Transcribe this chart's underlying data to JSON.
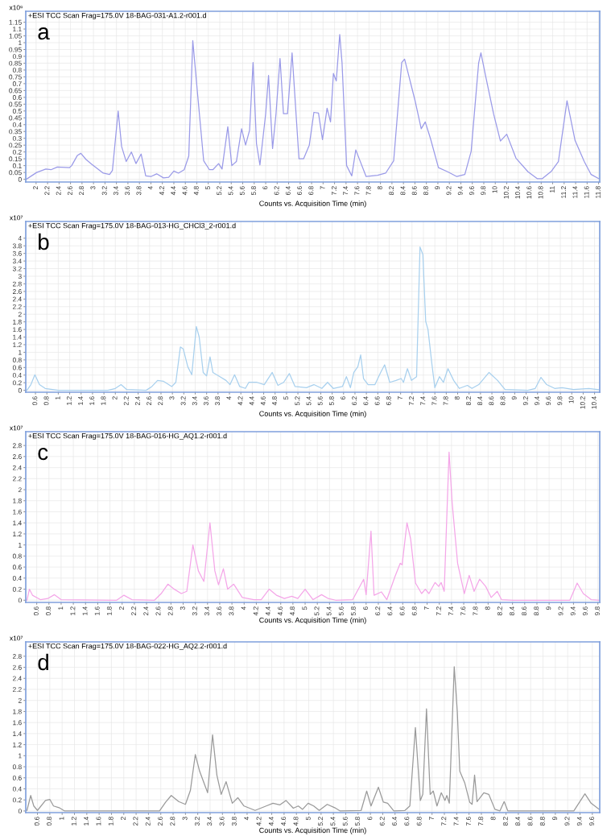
{
  "chart_data": [
    {
      "type": "line",
      "title": "a",
      "subtitle": "+ESI TCC Scan Frag=175.0V 18-BAG-031-A1.2-r001.d",
      "xlabel": "Counts vs. Acquisition Time (min)",
      "ylabel": "x10⁶",
      "grid": true,
      "xlim": [
        1.82,
        11.82
      ],
      "ylim": [
        -0.02,
        1.23
      ],
      "xticks": [
        2,
        2.2,
        2.4,
        2.6,
        2.8,
        3,
        3.2,
        3.4,
        3.6,
        3.8,
        4,
        4.2,
        4.4,
        4.6,
        4.8,
        5,
        5.2,
        5.4,
        5.6,
        5.8,
        6,
        6.2,
        6.4,
        6.6,
        6.8,
        7,
        7.2,
        7.4,
        7.6,
        7.8,
        8,
        8.2,
        8.4,
        8.6,
        8.8,
        9,
        9.2,
        9.4,
        9.6,
        9.8,
        10,
        10.2,
        10.4,
        10.6,
        10.8,
        11,
        11.2,
        11.4,
        11.6,
        11.8
      ],
      "yticks": [
        0,
        0.05,
        0.1,
        0.15,
        0.2,
        0.25,
        0.3,
        0.35,
        0.4,
        0.45,
        0.5,
        0.55,
        0.6,
        0.65,
        0.7,
        0.75,
        0.8,
        0.85,
        0.9,
        0.95,
        1,
        1.05,
        1.1,
        1.15
      ],
      "series": [
        {
          "color": "#9a9ae8",
          "x": [
            1.83,
            2.01,
            2.17,
            2.26,
            2.37,
            2.58,
            2.62,
            2.72,
            2.78,
            2.87,
            2.97,
            3.17,
            3.28,
            3.33,
            3.43,
            3.49,
            3.57,
            3.66,
            3.74,
            3.83,
            3.91,
            4.0,
            4.1,
            4.22,
            4.31,
            4.4,
            4.48,
            4.58,
            4.66,
            4.73,
            4.81,
            4.92,
            5.02,
            5.08,
            5.18,
            5.24,
            5.34,
            5.41,
            5.49,
            5.58,
            5.65,
            5.72,
            5.78,
            5.84,
            5.9,
            6.0,
            6.05,
            6.12,
            6.18,
            6.25,
            6.31,
            6.38,
            6.46,
            6.58,
            6.66,
            6.76,
            6.84,
            6.92,
            6.99,
            7.07,
            7.13,
            7.18,
            7.23,
            7.29,
            7.33,
            7.41,
            7.5,
            7.57,
            7.75,
            7.95,
            8.09,
            8.23,
            8.37,
            8.42,
            8.6,
            8.71,
            8.78,
            8.87,
            9.01,
            9.17,
            9.33,
            9.47,
            9.58,
            9.71,
            9.75,
            9.84,
            9.97,
            10.09,
            10.2,
            10.36,
            10.57,
            10.73,
            10.82,
            10.98,
            11.1,
            11.25,
            11.39,
            11.55,
            11.67,
            11.8
          ],
          "values": [
            0.0,
            0.05,
            0.075,
            0.07,
            0.09,
            0.085,
            0.1,
            0.175,
            0.19,
            0.145,
            0.11,
            0.045,
            0.035,
            0.065,
            0.5,
            0.24,
            0.13,
            0.2,
            0.115,
            0.185,
            0.025,
            0.02,
            0.04,
            0.01,
            0.015,
            0.06,
            0.045,
            0.07,
            0.17,
            1.015,
            0.64,
            0.135,
            0.07,
            0.07,
            0.115,
            0.075,
            0.385,
            0.1,
            0.13,
            0.37,
            0.25,
            0.36,
            0.855,
            0.26,
            0.105,
            0.48,
            0.76,
            0.225,
            0.48,
            0.885,
            0.48,
            0.48,
            0.925,
            0.15,
            0.15,
            0.25,
            0.49,
            0.485,
            0.29,
            0.52,
            0.42,
            0.775,
            0.72,
            1.06,
            0.855,
            0.1,
            0.025,
            0.215,
            0.02,
            0.03,
            0.045,
            0.135,
            0.855,
            0.88,
            0.58,
            0.37,
            0.42,
            0.3,
            0.085,
            0.055,
            0.02,
            0.035,
            0.205,
            0.85,
            0.925,
            0.74,
            0.48,
            0.28,
            0.33,
            0.155,
            0.055,
            0.005,
            0.005,
            0.06,
            0.13,
            0.575,
            0.285,
            0.13,
            0.035,
            0.005
          ]
        }
      ]
    },
    {
      "type": "line",
      "title": "b",
      "subtitle": "+ESI TCC Scan Frag=175.0V 18-BAG-013-HG_CHCl3_2-r001.d",
      "xlabel": "Counts vs. Acquisition Time (min)",
      "ylabel": "x10⁷",
      "grid": true,
      "xlim": [
        0.43,
        10.49
      ],
      "ylim": [
        -0.05,
        4.44
      ],
      "xticks": [
        0.6,
        0.8,
        1,
        1.2,
        1.4,
        1.6,
        1.8,
        2,
        2.2,
        2.4,
        2.6,
        2.8,
        3,
        3.2,
        3.4,
        3.6,
        3.8,
        4,
        4.2,
        4.4,
        4.6,
        4.8,
        5,
        5.2,
        5.4,
        5.6,
        5.8,
        6,
        6.2,
        6.4,
        6.6,
        6.8,
        7,
        7.2,
        7.4,
        7.6,
        7.8,
        8,
        8.2,
        8.4,
        8.6,
        8.8,
        9,
        9.2,
        9.4,
        9.6,
        9.8,
        10,
        10.2,
        10.4
      ],
      "yticks": [
        0,
        0.2,
        0.4,
        0.6,
        0.8,
        1,
        1.2,
        1.4,
        1.6,
        1.8,
        2,
        2.2,
        2.4,
        2.6,
        2.8,
        3,
        3.2,
        3.4,
        3.6,
        3.8,
        4
      ],
      "series": [
        {
          "color": "#a8d0ee",
          "x": [
            0.45,
            0.52,
            0.59,
            0.67,
            0.77,
            1.0,
            1.87,
            2.0,
            2.1,
            2.2,
            2.54,
            2.64,
            2.74,
            2.84,
            2.99,
            3.06,
            3.14,
            3.19,
            3.27,
            3.34,
            3.42,
            3.47,
            3.54,
            3.6,
            3.66,
            3.71,
            3.81,
            3.94,
            4.01,
            4.09,
            4.18,
            4.28,
            4.34,
            4.48,
            4.61,
            4.75,
            4.85,
            4.95,
            5.05,
            5.15,
            5.35,
            5.48,
            5.62,
            5.72,
            5.82,
            5.98,
            6.05,
            6.12,
            6.18,
            6.25,
            6.3,
            6.35,
            6.43,
            6.55,
            6.65,
            6.72,
            6.81,
            6.92,
            7.01,
            7.05,
            7.12,
            7.19,
            7.28,
            7.34,
            7.39,
            7.44,
            7.48,
            7.55,
            7.6,
            7.68,
            7.75,
            7.83,
            7.93,
            8.03,
            8.17,
            8.25,
            8.37,
            8.55,
            8.7,
            8.83,
            9.23,
            9.36,
            9.46,
            9.56,
            9.7,
            9.83,
            10.03,
            10.3,
            10.47
          ],
          "values": [
            0,
            0.15,
            0.41,
            0.15,
            0.05,
            0,
            0,
            0.05,
            0.15,
            0.02,
            0,
            0.1,
            0.26,
            0.24,
            0.1,
            0.21,
            1.14,
            1.09,
            0.62,
            0.41,
            1.68,
            1.4,
            0.47,
            0.38,
            0.88,
            0.47,
            0.38,
            0.26,
            0.15,
            0.41,
            0.1,
            0.05,
            0.21,
            0.21,
            0.15,
            0.47,
            0.13,
            0.21,
            0.44,
            0.1,
            0.07,
            0.15,
            0.05,
            0.21,
            0.05,
            0.1,
            0.36,
            0.07,
            0.47,
            0.62,
            0.93,
            0.31,
            0.15,
            0.15,
            0.47,
            0.67,
            0.21,
            0.26,
            0.31,
            0.21,
            0.57,
            0.26,
            0.36,
            3.77,
            3.57,
            1.81,
            1.6,
            0.67,
            0.07,
            0.36,
            0.21,
            0.57,
            0.26,
            0.05,
            0.13,
            0.05,
            0.15,
            0.47,
            0.26,
            0.02,
            0,
            0.05,
            0.34,
            0.15,
            0.05,
            0.07,
            0.02,
            0.05,
            0.02
          ]
        }
      ]
    },
    {
      "type": "line",
      "title": "c",
      "subtitle": "+ESI TCC Scan Frag=175.0V 18-BAG-016-HG_AQ1.2-r001.d",
      "xlabel": "Counts vs. Acquisition Time (min)",
      "ylabel": "x10⁷",
      "grid": true,
      "xlim": [
        0.42,
        9.83
      ],
      "ylim": [
        -0.04,
        3.05
      ],
      "xticks": [
        0.6,
        0.8,
        1,
        1.2,
        1.4,
        1.6,
        1.8,
        2,
        2.2,
        2.4,
        2.6,
        2.8,
        3,
        3.2,
        3.4,
        3.6,
        3.8,
        4,
        4.2,
        4.4,
        4.6,
        4.8,
        5,
        5.2,
        5.4,
        5.6,
        5.8,
        6,
        6.2,
        6.4,
        6.6,
        6.8,
        7,
        7.2,
        7.4,
        7.6,
        7.8,
        8,
        8.2,
        8.4,
        8.6,
        8.8,
        9,
        9.2,
        9.4,
        9.6,
        9.8
      ],
      "yticks": [
        0,
        0.2,
        0.4,
        0.6,
        0.8,
        1,
        1.2,
        1.4,
        1.6,
        1.8,
        2,
        2.2,
        2.4,
        2.6,
        2.8
      ],
      "series": [
        {
          "color": "#f4a6e8",
          "x": [
            0.44,
            0.48,
            0.53,
            0.66,
            0.78,
            0.89,
            1.0,
            1.91,
            2.03,
            2.16,
            2.53,
            2.64,
            2.75,
            2.84,
            2.97,
            3.06,
            3.16,
            3.25,
            3.34,
            3.44,
            3.52,
            3.58,
            3.66,
            3.73,
            3.83,
            3.97,
            4.16,
            4.28,
            4.41,
            4.53,
            4.66,
            4.78,
            4.88,
            5.0,
            5.13,
            5.27,
            5.38,
            5.5,
            5.78,
            5.96,
            6.0,
            6.08,
            6.13,
            6.25,
            6.34,
            6.47,
            6.56,
            6.59,
            6.67,
            6.73,
            6.81,
            6.91,
            6.97,
            7.03,
            7.13,
            7.19,
            7.23,
            7.28,
            7.36,
            7.41,
            7.5,
            7.61,
            7.69,
            7.77,
            7.86,
            7.96,
            8.05,
            8.15,
            8.22,
            8.41,
            9.34,
            9.46,
            9.56,
            9.69,
            9.82
          ],
          "values": [
            0,
            0.2,
            0.09,
            0.01,
            0.03,
            0.1,
            0.01,
            0,
            0.09,
            0.01,
            0,
            0.12,
            0.29,
            0.21,
            0.12,
            0.16,
            1.0,
            0.53,
            0.34,
            1.4,
            0.53,
            0.28,
            0.57,
            0.2,
            0.29,
            0.05,
            0.01,
            0.01,
            0.2,
            0.09,
            0.03,
            0.07,
            0.03,
            0.2,
            0.01,
            0.1,
            0.03,
            0,
            0.01,
            0.38,
            0.1,
            1.25,
            0.09,
            0.15,
            0.01,
            0.42,
            0.67,
            0.64,
            1.4,
            1.11,
            0.31,
            0.12,
            0.2,
            0.12,
            0.32,
            0.25,
            0.32,
            0.16,
            2.68,
            1.77,
            0.67,
            0.12,
            0.45,
            0.16,
            0.38,
            0.25,
            0.05,
            0.16,
            0.01,
            0,
            0,
            0.31,
            0.12,
            0.01,
            0
          ]
        }
      ]
    },
    {
      "type": "line",
      "title": "d",
      "subtitle": "+ESI TCC Scan Frag=175.0V 18-BAG-022-HG_AQ2.2-r001.d",
      "xlabel": "Counts vs. Acquisition Time (min)",
      "ylabel": "x10⁷",
      "grid": true,
      "xlim": [
        0.41,
        9.72
      ],
      "ylim": [
        -0.03,
        3.06
      ],
      "xticks": [
        0.6,
        0.8,
        1,
        1.2,
        1.4,
        1.6,
        1.8,
        2,
        2.2,
        2.4,
        2.6,
        2.8,
        3,
        3.2,
        3.4,
        3.6,
        3.8,
        4,
        4.2,
        4.4,
        4.6,
        4.8,
        5,
        5.2,
        5.4,
        5.6,
        5.8,
        6,
        6.2,
        6.4,
        6.6,
        6.8,
        7,
        7.2,
        7.4,
        7.6,
        7.8,
        8,
        8.2,
        8.4,
        8.6,
        8.8,
        9,
        9.2,
        9.4,
        9.6
      ],
      "yticks": [
        0,
        0.2,
        0.4,
        0.6,
        0.8,
        1,
        1.2,
        1.4,
        1.6,
        1.8,
        2,
        2.2,
        2.4,
        2.6,
        2.8
      ],
      "series": [
        {
          "color": "#9a9a9a",
          "x": [
            0.43,
            0.49,
            0.54,
            0.6,
            0.73,
            0.8,
            0.86,
            0.95,
            1.04,
            2.58,
            2.68,
            2.77,
            2.89,
            3.0,
            3.08,
            3.16,
            3.23,
            3.36,
            3.44,
            3.51,
            3.58,
            3.66,
            3.76,
            3.85,
            3.95,
            4.13,
            4.31,
            4.42,
            4.53,
            4.63,
            4.75,
            4.83,
            4.9,
            4.99,
            5.08,
            5.17,
            5.3,
            5.42,
            5.51,
            5.85,
            5.94,
            6.01,
            6.13,
            6.21,
            6.28,
            6.38,
            6.56,
            6.64,
            6.73,
            6.81,
            6.85,
            6.91,
            6.97,
            7.02,
            7.08,
            7.15,
            7.21,
            7.24,
            7.28,
            7.36,
            7.41,
            7.45,
            7.53,
            7.61,
            7.65,
            7.69,
            7.73,
            7.84,
            7.92,
            8.02,
            8.1,
            8.17,
            8.23,
            9.3,
            9.48,
            9.58,
            9.71
          ],
          "values": [
            0.01,
            0.28,
            0.09,
            0.01,
            0.19,
            0.21,
            0.09,
            0.06,
            0,
            0,
            0.16,
            0.28,
            0.17,
            0.12,
            0.37,
            1.02,
            0.72,
            0.33,
            1.38,
            0.65,
            0.3,
            0.53,
            0.14,
            0.24,
            0.09,
            0.01,
            0.09,
            0.14,
            0.11,
            0.19,
            0.05,
            0.09,
            0.03,
            0.14,
            0.09,
            0.01,
            0.12,
            0.06,
            0,
            0.01,
            0.36,
            0.09,
            0.43,
            0.16,
            0.14,
            0,
            0.01,
            0.09,
            1.51,
            0.19,
            0.3,
            1.85,
            0.3,
            0.36,
            0.09,
            0.33,
            0.19,
            0.28,
            0.14,
            2.61,
            1.79,
            0.72,
            0.51,
            0.16,
            0.12,
            0.65,
            0.17,
            0.33,
            0.3,
            0.03,
            0,
            0.17,
            0,
            0,
            0.31,
            0.14,
            0.03
          ]
        }
      ]
    }
  ]
}
